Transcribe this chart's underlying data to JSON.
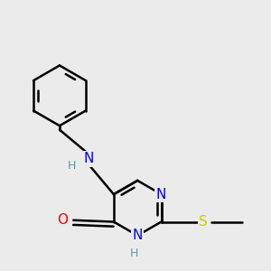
{
  "background_color": "#ebebeb",
  "bond_color": "#000000",
  "bond_width": 1.8,
  "atom_colors": {
    "N": "#0000ff",
    "O": "#ff0000",
    "S": "#cccc00",
    "H": "#5f9ea0"
  },
  "font_size": 11,
  "fig_size": [
    3.0,
    3.0
  ],
  "dpi": 100
}
